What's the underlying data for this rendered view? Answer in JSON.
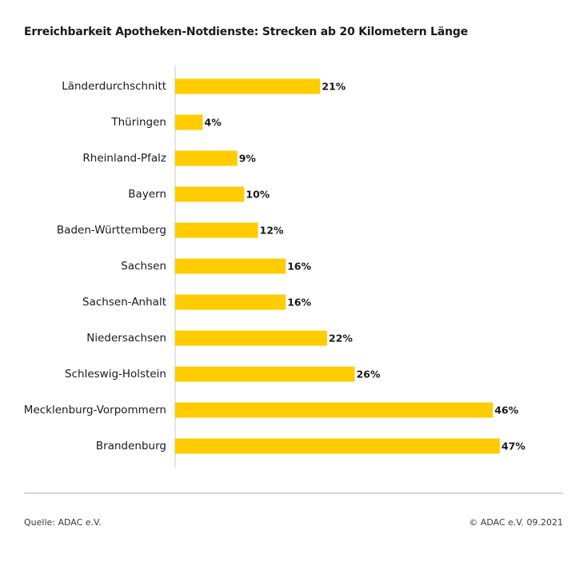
{
  "colors": {
    "bar": "#ffcc00",
    "axis": "#c8c8c8",
    "text": "#1a1a1a"
  },
  "chart_data": {
    "type": "bar",
    "orientation": "horizontal",
    "title": "Erreichbarkeit Apotheken-Notdienste: Strecken ab 20 Kilometern Länge",
    "categories": [
      "Länderdurchschnitt",
      "Thüringen",
      "Rheinland-Pfalz",
      "Bayern",
      "Baden-Württemberg",
      "Sachsen",
      "Sachsen-Anhalt",
      "Niedersachsen",
      "Schleswig-Holstein",
      "Mecklenburg-Vorpommern",
      "Brandenburg"
    ],
    "values": [
      21,
      4,
      9,
      10,
      12,
      16,
      16,
      22,
      26,
      46,
      47
    ],
    "value_labels": [
      "21%",
      "4%",
      "9%",
      "10%",
      "12%",
      "16%",
      "16%",
      "22%",
      "26%",
      "46%",
      "47%"
    ],
    "unit": "%",
    "xlim": [
      0,
      47
    ],
    "xlabel": "",
    "ylabel": "",
    "grid": false,
    "legend": "none"
  },
  "footer": {
    "source": "Quelle: ADAC e.V.",
    "copyright": "© ADAC e.V. 09.2021"
  }
}
